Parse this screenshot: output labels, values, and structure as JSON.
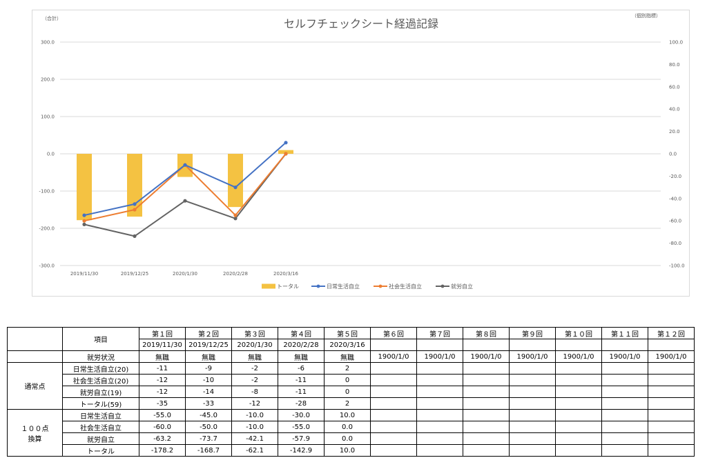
{
  "chart_data": {
    "type": "bar+line",
    "title": "セルフチェックシート経過記録",
    "left_axis_label": "（合計）",
    "right_axis_label": "（個別指標）",
    "categories": [
      "2019/11/30",
      "2019/12/25",
      "2020/1/30",
      "2020/2/28",
      "2020/3/16"
    ],
    "left_ylim": [
      -300,
      300
    ],
    "left_ticks": [
      "300.0",
      "200.0",
      "100.0",
      "0.0",
      "-100.0",
      "-200.0",
      "-300.0"
    ],
    "right_ylim": [
      -100,
      100
    ],
    "right_ticks": [
      "100.0",
      "80.0",
      "60.0",
      "40.0",
      "20.0",
      "0.0",
      "-20.0",
      "-40.0",
      "-60.0",
      "-80.0",
      "-100.0"
    ],
    "grid": true,
    "legend_position": "bottom",
    "series": [
      {
        "name": "トータル",
        "kind": "bar",
        "axis": "left",
        "color": "#F4C242",
        "values": [
          -178.2,
          -168.7,
          -62.1,
          -142.9,
          10.0
        ]
      },
      {
        "name": "日常生活自立",
        "kind": "line",
        "axis": "right",
        "color": "#4472C4",
        "values": [
          -55.0,
          -45.0,
          -10.0,
          -30.0,
          10.0
        ]
      },
      {
        "name": "社会生活自立",
        "kind": "line",
        "axis": "right",
        "color": "#ED7D31",
        "values": [
          -60.0,
          -50.0,
          -10.0,
          -55.0,
          0.0
        ]
      },
      {
        "name": "就労自立",
        "kind": "line",
        "axis": "right",
        "color": "#636363",
        "values": [
          -63.2,
          -73.7,
          -42.1,
          -57.9,
          0.0
        ]
      }
    ]
  },
  "table": {
    "item_header": "項目",
    "rounds": [
      "第１回",
      "第２回",
      "第３回",
      "第４回",
      "第５回",
      "第６回",
      "第７回",
      "第８回",
      "第９回",
      "第１０回",
      "第１１回",
      "第１２回"
    ],
    "dates": [
      "2019/11/30",
      "2019/12/25",
      "2020/1/30",
      "2020/2/28",
      "2020/3/16",
      "",
      "",
      "",
      "",
      "",
      "",
      ""
    ],
    "employment_label": "就労状況",
    "employment": [
      "無職",
      "無職",
      "無職",
      "無職",
      "無職",
      "1900/1/0",
      "1900/1/0",
      "1900/1/0",
      "1900/1/0",
      "1900/1/0",
      "1900/1/0",
      "1900/1/0"
    ],
    "groups": [
      {
        "label": "通常点",
        "rows": [
          {
            "label": "日常生活自立(20)",
            "values": [
              "-11",
              "-9",
              "-2",
              "-6",
              "2",
              "",
              "",
              "",
              "",
              "",
              "",
              ""
            ]
          },
          {
            "label": "社会生活自立(20)",
            "values": [
              "-12",
              "-10",
              "-2",
              "-11",
              "0",
              "",
              "",
              "",
              "",
              "",
              "",
              ""
            ]
          },
          {
            "label": "就労自立(19)",
            "values": [
              "-12",
              "-14",
              "-8",
              "-11",
              "0",
              "",
              "",
              "",
              "",
              "",
              "",
              ""
            ]
          },
          {
            "label": "トータル(59)",
            "values": [
              "-35",
              "-33",
              "-12",
              "-28",
              "2",
              "",
              "",
              "",
              "",
              "",
              "",
              ""
            ]
          }
        ]
      },
      {
        "label_lines": [
          "１００点",
          "換算"
        ],
        "rows": [
          {
            "label": "日常生活自立",
            "values": [
              "-55.0",
              "-45.0",
              "-10.0",
              "-30.0",
              "10.0",
              "",
              "",
              "",
              "",
              "",
              "",
              ""
            ]
          },
          {
            "label": "社会生活自立",
            "values": [
              "-60.0",
              "-50.0",
              "-10.0",
              "-55.0",
              "0.0",
              "",
              "",
              "",
              "",
              "",
              "",
              ""
            ]
          },
          {
            "label": "就労自立",
            "values": [
              "-63.2",
              "-73.7",
              "-42.1",
              "-57.9",
              "0.0",
              "",
              "",
              "",
              "",
              "",
              "",
              ""
            ]
          },
          {
            "label": "トータル",
            "values": [
              "-178.2",
              "-168.7",
              "-62.1",
              "-142.9",
              "10.0",
              "",
              "",
              "",
              "",
              "",
              "",
              ""
            ]
          }
        ]
      }
    ]
  }
}
